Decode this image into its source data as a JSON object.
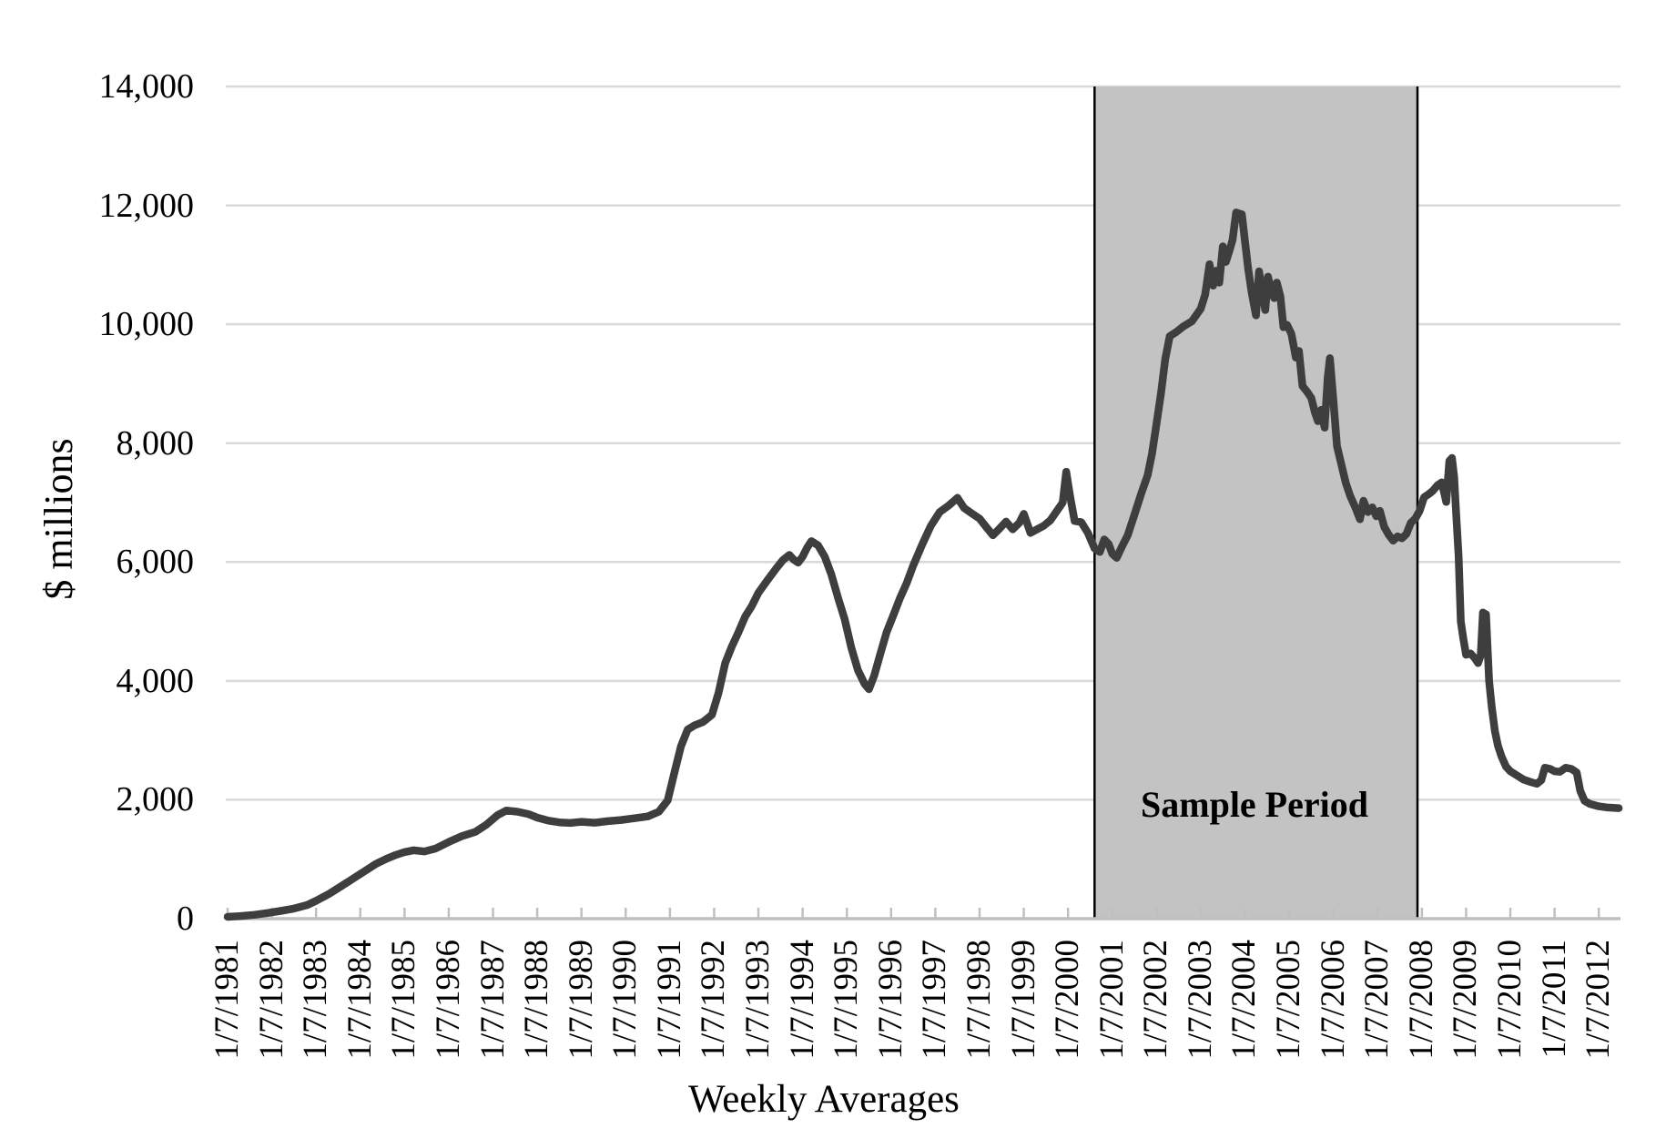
{
  "chart_data": {
    "type": "line",
    "title": "",
    "xlabel": "Weekly Averages",
    "ylabel": "$ millions",
    "legend": "none",
    "grid": "horizontal",
    "ylim": [
      0,
      14000
    ],
    "xlim": [
      1981,
      2012.49
    ],
    "y_ticks": [
      {
        "value": 14000,
        "label": "14,000"
      },
      {
        "value": 12000,
        "label": "12,000"
      },
      {
        "value": 10000,
        "label": "10,000"
      },
      {
        "value": 8000,
        "label": "8,000"
      },
      {
        "value": 6000,
        "label": "6,000"
      },
      {
        "value": 4000,
        "label": "4,000"
      },
      {
        "value": 2000,
        "label": "2,000"
      },
      {
        "value": 0,
        "label": "0"
      }
    ],
    "x_ticks": [
      {
        "value": 1981,
        "label": "1/7/1981"
      },
      {
        "value": 1982,
        "label": "1/7/1982"
      },
      {
        "value": 1983,
        "label": "1/7/1983"
      },
      {
        "value": 1984,
        "label": "1/7/1984"
      },
      {
        "value": 1985,
        "label": "1/7/1985"
      },
      {
        "value": 1986,
        "label": "1/7/1986"
      },
      {
        "value": 1987,
        "label": "1/7/1987"
      },
      {
        "value": 1988,
        "label": "1/7/1988"
      },
      {
        "value": 1989,
        "label": "1/7/1989"
      },
      {
        "value": 1990,
        "label": "1/7/1990"
      },
      {
        "value": 1991,
        "label": "1/7/1991"
      },
      {
        "value": 1992,
        "label": "1/7/1992"
      },
      {
        "value": 1993,
        "label": "1/7/1993"
      },
      {
        "value": 1994,
        "label": "1/7/1994"
      },
      {
        "value": 1995,
        "label": "1/7/1995"
      },
      {
        "value": 1996,
        "label": "1/7/1996"
      },
      {
        "value": 1997,
        "label": "1/7/1997"
      },
      {
        "value": 1998,
        "label": "1/7/1998"
      },
      {
        "value": 1999,
        "label": "1/7/1999"
      },
      {
        "value": 2000,
        "label": "1/7/2000"
      },
      {
        "value": 2001,
        "label": "1/7/2001"
      },
      {
        "value": 2002,
        "label": "1/7/2002"
      },
      {
        "value": 2003,
        "label": "1/7/2003"
      },
      {
        "value": 2004,
        "label": "1/7/2004"
      },
      {
        "value": 2005,
        "label": "1/7/2005"
      },
      {
        "value": 2006,
        "label": "1/7/2006"
      },
      {
        "value": 2007,
        "label": "1/7/2007"
      },
      {
        "value": 2008,
        "label": "1/7/2008"
      },
      {
        "value": 2009,
        "label": "1/7/2009"
      },
      {
        "value": 2010,
        "label": "1/7/2010"
      },
      {
        "value": 2011,
        "label": "1/7/2011"
      },
      {
        "value": 2012,
        "label": "1/7/2012"
      }
    ],
    "sample_period": {
      "label": "Sample Period",
      "x_start": 2000.6,
      "x_end": 2007.9
    },
    "series": [
      {
        "name": "weekly-average-line",
        "points": [
          [
            1981.0,
            30
          ],
          [
            1981.3,
            45
          ],
          [
            1981.6,
            65
          ],
          [
            1981.9,
            95
          ],
          [
            1982.2,
            130
          ],
          [
            1982.5,
            170
          ],
          [
            1982.8,
            230
          ],
          [
            1983.0,
            300
          ],
          [
            1983.3,
            420
          ],
          [
            1983.6,
            560
          ],
          [
            1983.85,
            680
          ],
          [
            1984.1,
            800
          ],
          [
            1984.35,
            920
          ],
          [
            1984.6,
            1010
          ],
          [
            1984.8,
            1070
          ],
          [
            1985.0,
            1120
          ],
          [
            1985.2,
            1150
          ],
          [
            1985.45,
            1130
          ],
          [
            1985.7,
            1180
          ],
          [
            1986.0,
            1290
          ],
          [
            1986.3,
            1390
          ],
          [
            1986.6,
            1460
          ],
          [
            1986.85,
            1580
          ],
          [
            1987.1,
            1740
          ],
          [
            1987.3,
            1820
          ],
          [
            1987.55,
            1800
          ],
          [
            1987.8,
            1760
          ],
          [
            1988.0,
            1700
          ],
          [
            1988.25,
            1650
          ],
          [
            1988.5,
            1620
          ],
          [
            1988.75,
            1610
          ],
          [
            1989.0,
            1630
          ],
          [
            1989.3,
            1615
          ],
          [
            1989.6,
            1640
          ],
          [
            1989.9,
            1660
          ],
          [
            1990.2,
            1690
          ],
          [
            1990.5,
            1720
          ],
          [
            1990.75,
            1800
          ],
          [
            1990.95,
            1990
          ],
          [
            1991.1,
            2450
          ],
          [
            1991.25,
            2900
          ],
          [
            1991.4,
            3180
          ],
          [
            1991.55,
            3250
          ],
          [
            1991.75,
            3310
          ],
          [
            1991.95,
            3430
          ],
          [
            1992.1,
            3800
          ],
          [
            1992.25,
            4300
          ],
          [
            1992.4,
            4580
          ],
          [
            1992.55,
            4820
          ],
          [
            1992.7,
            5080
          ],
          [
            1992.85,
            5260
          ],
          [
            1993.0,
            5480
          ],
          [
            1993.2,
            5690
          ],
          [
            1993.4,
            5890
          ],
          [
            1993.55,
            6030
          ],
          [
            1993.7,
            6120
          ],
          [
            1993.8,
            6040
          ],
          [
            1993.9,
            5990
          ],
          [
            1994.0,
            6090
          ],
          [
            1994.1,
            6240
          ],
          [
            1994.2,
            6350
          ],
          [
            1994.35,
            6280
          ],
          [
            1994.5,
            6090
          ],
          [
            1994.65,
            5790
          ],
          [
            1994.8,
            5400
          ],
          [
            1994.95,
            5040
          ],
          [
            1995.1,
            4560
          ],
          [
            1995.25,
            4180
          ],
          [
            1995.4,
            3950
          ],
          [
            1995.5,
            3860
          ],
          [
            1995.62,
            4090
          ],
          [
            1995.75,
            4440
          ],
          [
            1995.9,
            4820
          ],
          [
            1996.05,
            5100
          ],
          [
            1996.2,
            5390
          ],
          [
            1996.35,
            5640
          ],
          [
            1996.5,
            5940
          ],
          [
            1996.7,
            6290
          ],
          [
            1996.9,
            6610
          ],
          [
            1997.1,
            6840
          ],
          [
            1997.3,
            6950
          ],
          [
            1997.5,
            7080
          ],
          [
            1997.65,
            6910
          ],
          [
            1997.8,
            6830
          ],
          [
            1998.0,
            6730
          ],
          [
            1998.15,
            6590
          ],
          [
            1998.3,
            6450
          ],
          [
            1998.45,
            6560
          ],
          [
            1998.6,
            6680
          ],
          [
            1998.75,
            6550
          ],
          [
            1998.9,
            6660
          ],
          [
            1999.0,
            6810
          ],
          [
            1999.15,
            6490
          ],
          [
            1999.3,
            6550
          ],
          [
            1999.45,
            6610
          ],
          [
            1999.6,
            6700
          ],
          [
            1999.75,
            6860
          ],
          [
            1999.88,
            7000
          ],
          [
            1999.96,
            7520
          ],
          [
            2000.05,
            7090
          ],
          [
            2000.15,
            6690
          ],
          [
            2000.3,
            6670
          ],
          [
            2000.45,
            6490
          ],
          [
            2000.6,
            6230
          ],
          [
            2000.72,
            6170
          ],
          [
            2000.82,
            6380
          ],
          [
            2000.92,
            6300
          ],
          [
            2001.0,
            6140
          ],
          [
            2001.1,
            6070
          ],
          [
            2001.22,
            6260
          ],
          [
            2001.35,
            6450
          ],
          [
            2001.5,
            6790
          ],
          [
            2001.65,
            7140
          ],
          [
            2001.8,
            7460
          ],
          [
            2001.9,
            7830
          ],
          [
            2002.0,
            8320
          ],
          [
            2002.1,
            8830
          ],
          [
            2002.2,
            9420
          ],
          [
            2002.3,
            9800
          ],
          [
            2002.45,
            9870
          ],
          [
            2002.6,
            9960
          ],
          [
            2002.8,
            10050
          ],
          [
            2003.0,
            10260
          ],
          [
            2003.1,
            10500
          ],
          [
            2003.2,
            11010
          ],
          [
            2003.28,
            10650
          ],
          [
            2003.35,
            10900
          ],
          [
            2003.42,
            10700
          ],
          [
            2003.5,
            11310
          ],
          [
            2003.57,
            11050
          ],
          [
            2003.65,
            11240
          ],
          [
            2003.72,
            11420
          ],
          [
            2003.8,
            11880
          ],
          [
            2003.93,
            11850
          ],
          [
            2004.0,
            11400
          ],
          [
            2004.07,
            10950
          ],
          [
            2004.15,
            10540
          ],
          [
            2004.25,
            10150
          ],
          [
            2004.32,
            10890
          ],
          [
            2004.4,
            10500
          ],
          [
            2004.46,
            10240
          ],
          [
            2004.52,
            10800
          ],
          [
            2004.6,
            10550
          ],
          [
            2004.66,
            10440
          ],
          [
            2004.72,
            10700
          ],
          [
            2004.8,
            10470
          ],
          [
            2004.87,
            9950
          ],
          [
            2004.95,
            9990
          ],
          [
            2005.05,
            9840
          ],
          [
            2005.15,
            9440
          ],
          [
            2005.22,
            9550
          ],
          [
            2005.3,
            8960
          ],
          [
            2005.4,
            8870
          ],
          [
            2005.5,
            8760
          ],
          [
            2005.58,
            8520
          ],
          [
            2005.65,
            8370
          ],
          [
            2005.72,
            8560
          ],
          [
            2005.8,
            8260
          ],
          [
            2005.87,
            9100
          ],
          [
            2005.92,
            9430
          ],
          [
            2006.0,
            8710
          ],
          [
            2006.08,
            7950
          ],
          [
            2006.18,
            7640
          ],
          [
            2006.28,
            7330
          ],
          [
            2006.38,
            7110
          ],
          [
            2006.5,
            6910
          ],
          [
            2006.6,
            6720
          ],
          [
            2006.68,
            7030
          ],
          [
            2006.78,
            6840
          ],
          [
            2006.88,
            6920
          ],
          [
            2006.97,
            6770
          ],
          [
            2007.05,
            6860
          ],
          [
            2007.15,
            6590
          ],
          [
            2007.25,
            6460
          ],
          [
            2007.35,
            6360
          ],
          [
            2007.45,
            6430
          ],
          [
            2007.55,
            6400
          ],
          [
            2007.65,
            6470
          ],
          [
            2007.75,
            6660
          ],
          [
            2007.85,
            6730
          ],
          [
            2007.95,
            6860
          ],
          [
            2008.05,
            7090
          ],
          [
            2008.15,
            7140
          ],
          [
            2008.25,
            7200
          ],
          [
            2008.35,
            7290
          ],
          [
            2008.45,
            7340
          ],
          [
            2008.55,
            7010
          ],
          [
            2008.62,
            7700
          ],
          [
            2008.68,
            7750
          ],
          [
            2008.73,
            7430
          ],
          [
            2008.78,
            6760
          ],
          [
            2008.83,
            6100
          ],
          [
            2008.88,
            5000
          ],
          [
            2008.94,
            4700
          ],
          [
            2009.0,
            4440
          ],
          [
            2009.1,
            4460
          ],
          [
            2009.2,
            4380
          ],
          [
            2009.27,
            4300
          ],
          [
            2009.33,
            4430
          ],
          [
            2009.38,
            5150
          ],
          [
            2009.45,
            5120
          ],
          [
            2009.52,
            4000
          ],
          [
            2009.58,
            3560
          ],
          [
            2009.65,
            3160
          ],
          [
            2009.72,
            2910
          ],
          [
            2009.8,
            2730
          ],
          [
            2009.9,
            2560
          ],
          [
            2010.0,
            2480
          ],
          [
            2010.15,
            2410
          ],
          [
            2010.3,
            2340
          ],
          [
            2010.45,
            2300
          ],
          [
            2010.6,
            2270
          ],
          [
            2010.7,
            2330
          ],
          [
            2010.78,
            2540
          ],
          [
            2010.9,
            2520
          ],
          [
            2011.0,
            2480
          ],
          [
            2011.12,
            2470
          ],
          [
            2011.25,
            2540
          ],
          [
            2011.38,
            2520
          ],
          [
            2011.5,
            2460
          ],
          [
            2011.58,
            2150
          ],
          [
            2011.68,
            1980
          ],
          [
            2011.8,
            1930
          ],
          [
            2012.0,
            1890
          ],
          [
            2012.2,
            1870
          ],
          [
            2012.45,
            1860
          ]
        ]
      }
    ],
    "colors": {
      "line": "#3e3e3e",
      "sample_fill": "#c3c3c3",
      "sample_border": "#000000",
      "gridline": "#d9d9d9",
      "axis": "#bfbfbf",
      "text": "#000000"
    }
  }
}
